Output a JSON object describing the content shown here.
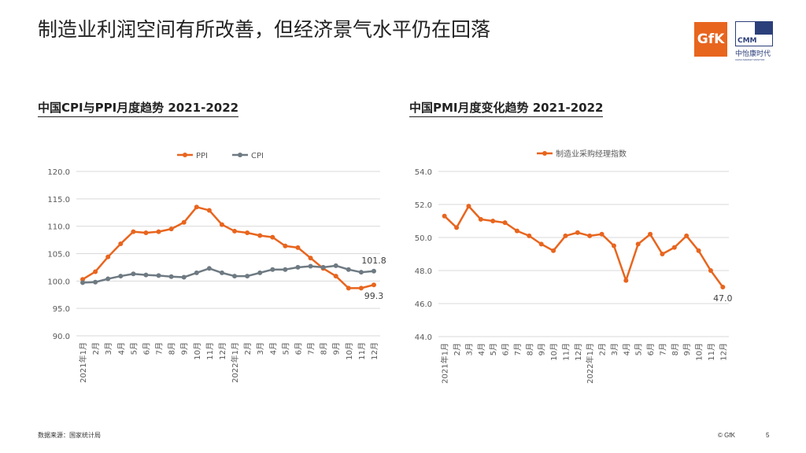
{
  "slide": {
    "title": "制造业利润空间有所改善，但经济景气水平仍在回落",
    "logo_gfk": "GfK",
    "logo_cmm_mark": "CMM",
    "logo_cmm_cn": "中怡康时代",
    "logo_cmm_en": "CHINA MARKET MONITOR",
    "source": "数据来源：国家统计局",
    "copyright": "© GfK",
    "page_number": "5",
    "accent_color": "#e8651e",
    "secondary_color": "#6e7a82"
  },
  "chart_data": [
    {
      "type": "line",
      "title": "中国CPI与PPI月度趋势 2021-2022",
      "categories": [
        "2021年1月",
        "2月",
        "3月",
        "4月",
        "5月",
        "6月",
        "7月",
        "8月",
        "9月",
        "10月",
        "11月",
        "12月",
        "2022年1月",
        "2月",
        "3月",
        "4月",
        "5月",
        "6月",
        "7月",
        "8月",
        "9月",
        "10月",
        "11月",
        "12月"
      ],
      "series": [
        {
          "name": "PPI",
          "color": "#e8651e",
          "values": [
            100.3,
            101.7,
            104.4,
            106.8,
            109.0,
            108.8,
            109.0,
            109.5,
            110.7,
            113.5,
            112.9,
            110.3,
            109.1,
            108.8,
            108.3,
            108.0,
            106.4,
            106.1,
            104.2,
            102.3,
            100.9,
            98.7,
            98.7,
            99.3
          ]
        },
        {
          "name": "CPI",
          "color": "#6e7a82",
          "values": [
            99.7,
            99.8,
            100.4,
            100.9,
            101.3,
            101.1,
            101.0,
            100.8,
            100.7,
            101.5,
            102.3,
            101.5,
            100.9,
            100.9,
            101.5,
            102.1,
            102.1,
            102.5,
            102.7,
            102.5,
            102.8,
            102.1,
            101.6,
            101.8
          ]
        }
      ],
      "ylim": [
        90,
        120
      ],
      "yticks": [
        "90.0",
        "95.0",
        "100.0",
        "105.0",
        "110.0",
        "115.0",
        "120.0"
      ],
      "legend": "top-center",
      "grid": true,
      "annotations": [
        {
          "series": "CPI",
          "index": 23,
          "text": "101.8",
          "pos": "above"
        },
        {
          "series": "PPI",
          "index": 23,
          "text": "99.3",
          "pos": "below"
        }
      ]
    },
    {
      "type": "line",
      "title": "中国PMI月度变化趋势 2021-2022",
      "categories": [
        "2021年1月",
        "2月",
        "3月",
        "4月",
        "5月",
        "6月",
        "7月",
        "8月",
        "9月",
        "10月",
        "11月",
        "12月",
        "2022年1月",
        "2月",
        "3月",
        "4月",
        "5月",
        "6月",
        "7月",
        "8月",
        "9月",
        "10月",
        "11月",
        "12月"
      ],
      "series": [
        {
          "name": "制造业采购经理指数",
          "color": "#e8651e",
          "values": [
            51.3,
            50.6,
            51.9,
            51.1,
            51.0,
            50.9,
            50.4,
            50.1,
            49.6,
            49.2,
            50.1,
            50.3,
            50.1,
            50.2,
            49.5,
            47.4,
            49.6,
            50.2,
            49.0,
            49.4,
            50.1,
            49.2,
            48.0,
            47.0
          ]
        }
      ],
      "ylim": [
        44,
        54
      ],
      "yticks": [
        "44.0",
        "46.0",
        "48.0",
        "50.0",
        "52.0",
        "54.0"
      ],
      "legend": "top-center",
      "grid": true,
      "annotations": [
        {
          "series": "制造业采购经理指数",
          "index": 23,
          "text": "47.0",
          "pos": "below"
        }
      ]
    }
  ]
}
